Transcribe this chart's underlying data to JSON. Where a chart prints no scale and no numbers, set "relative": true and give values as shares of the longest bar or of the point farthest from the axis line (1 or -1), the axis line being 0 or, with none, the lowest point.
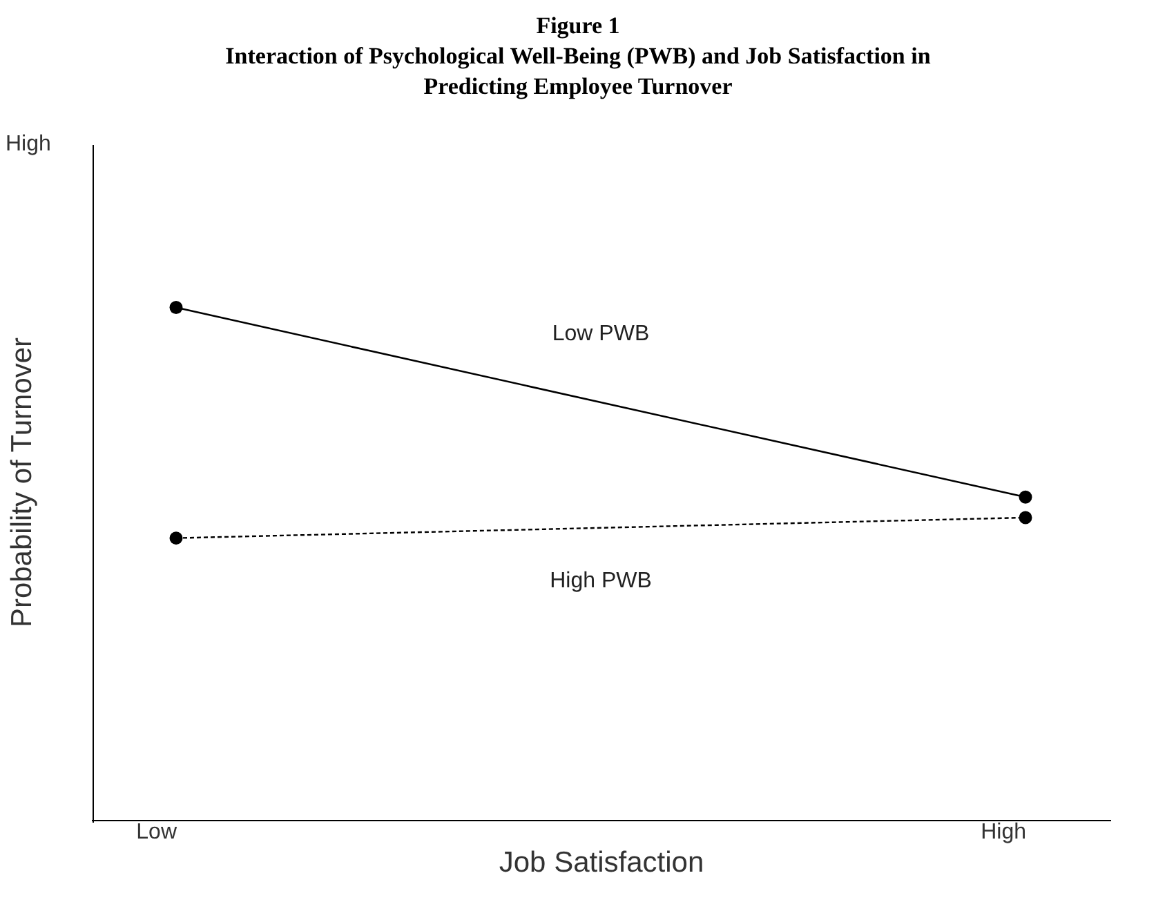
{
  "chart_data": {
    "type": "line",
    "title": "Figure 1",
    "subtitle": "Interaction of Psychological Well-Being (PWB) and Job Satisfaction in Predicting Employee Turnover",
    "xlabel": "Job Satisfaction",
    "ylabel": "Probability of Turnover",
    "categories": [
      "Low",
      "High"
    ],
    "relative": true,
    "marker": "circle",
    "legend": false,
    "grid": false,
    "annotations": [
      "High"
    ],
    "series": [
      {
        "name": "Low PWB",
        "color": "#000000",
        "line_style": "solid",
        "values": [
          1,
          0.63
        ]
      },
      {
        "name": "High PWB",
        "color": "#000000",
        "line_style": "dotted",
        "values": [
          0.55,
          0.59
        ]
      }
    ]
  }
}
